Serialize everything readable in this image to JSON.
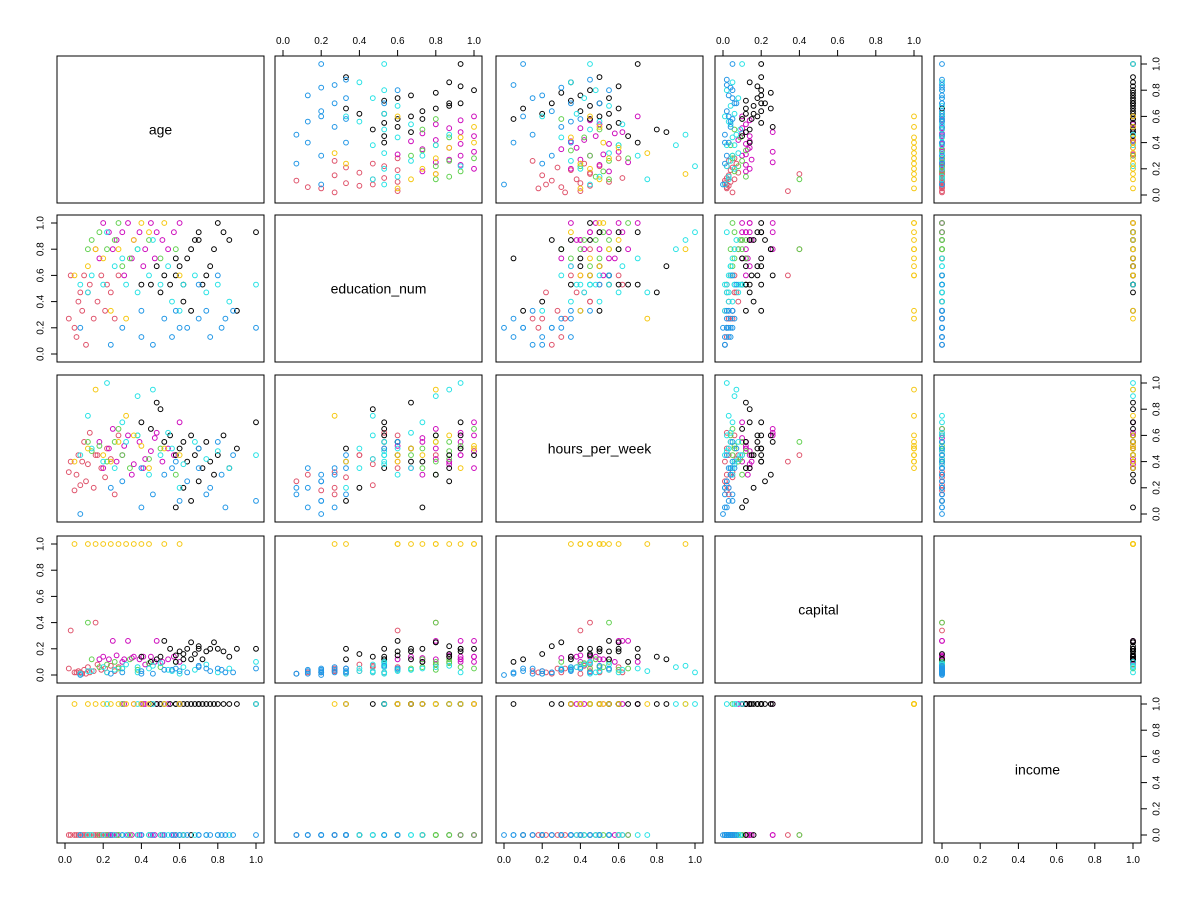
{
  "chart_data": {
    "type": "scatter",
    "subtype": "scatterplot-matrix",
    "variables": [
      "age",
      "education_num",
      "hours_per_week",
      "capital",
      "income"
    ],
    "axis_range": [
      0,
      1
    ],
    "tick_labels": [
      "0.0",
      "0.2",
      "0.4",
      "0.6",
      "0.8",
      "1.0"
    ],
    "grid": false,
    "legend": "none",
    "point_colors": [
      "#000000",
      "#DF536B",
      "#61D04F",
      "#2297E6",
      "#28E2E5",
      "#CD0BBC",
      "#F5C710"
    ],
    "points": [
      [
        0.02,
        0.27,
        0.32,
        0.05,
        0,
        1
      ],
      [
        0.05,
        0.2,
        0.18,
        0.02,
        0,
        1
      ],
      [
        0.07,
        0.4,
        0.45,
        0.03,
        0,
        1
      ],
      [
        0.09,
        0.33,
        0.4,
        0.01,
        0,
        1
      ],
      [
        0.1,
        0.6,
        0.55,
        0.04,
        0,
        1
      ],
      [
        0.12,
        0.47,
        0.38,
        0.06,
        0,
        1
      ],
      [
        0.13,
        0.53,
        0.62,
        0.02,
        0,
        1
      ],
      [
        0.15,
        0.27,
        0.2,
        0.03,
        0,
        1
      ],
      [
        0.17,
        0.4,
        0.45,
        0.08,
        0,
        1
      ],
      [
        0.19,
        0.6,
        0.35,
        0.04,
        0,
        1
      ],
      [
        0.21,
        0.33,
        0.28,
        0.05,
        0,
        1
      ],
      [
        0.22,
        0.53,
        0.5,
        0.02,
        0,
        1
      ],
      [
        0.24,
        0.47,
        0.42,
        0.07,
        0,
        1
      ],
      [
        0.26,
        0.27,
        0.15,
        0.03,
        0,
        1
      ],
      [
        0.28,
        0.6,
        0.6,
        0.06,
        0,
        1
      ],
      [
        0.06,
        0.13,
        0.3,
        0.02,
        0,
        1
      ],
      [
        0.11,
        0.07,
        0.25,
        0.01,
        0,
        1
      ],
      [
        0.03,
        0.6,
        0.4,
        0.34,
        0,
        1
      ],
      [
        0.16,
        0.8,
        0.45,
        0.4,
        0,
        1
      ],
      [
        0.08,
        0.47,
        0.22,
        0.02,
        0,
        1
      ],
      [
        0.2,
        1.0,
        0.35,
        0.14,
        0,
        5
      ],
      [
        0.23,
        0.93,
        0.5,
        0.12,
        0,
        5
      ],
      [
        0.27,
        0.87,
        0.4,
        0.15,
        0,
        5
      ],
      [
        0.3,
        0.93,
        0.45,
        0.1,
        1,
        5
      ],
      [
        0.33,
        1.0,
        0.6,
        0.26,
        0,
        5
      ],
      [
        0.36,
        0.87,
        0.38,
        0.14,
        1,
        5
      ],
      [
        0.39,
        0.93,
        0.55,
        0.12,
        0,
        5
      ],
      [
        0.42,
        0.8,
        0.42,
        0.08,
        1,
        5
      ],
      [
        0.45,
        1.0,
        0.48,
        0.14,
        0,
        5
      ],
      [
        0.48,
        0.93,
        0.62,
        0.26,
        1,
        5
      ],
      [
        0.51,
        0.87,
        0.4,
        0.1,
        0,
        5
      ],
      [
        0.54,
        0.8,
        0.5,
        0.12,
        1,
        5
      ],
      [
        0.57,
        0.93,
        0.45,
        0.14,
        0,
        5
      ],
      [
        0.6,
        1.0,
        0.7,
        0.1,
        1,
        5
      ],
      [
        0.35,
        0.73,
        0.3,
        0.13,
        0,
        5
      ],
      [
        0.25,
        0.8,
        0.65,
        0.26,
        0,
        5
      ],
      [
        0.18,
        0.73,
        0.55,
        0.12,
        0,
        5
      ],
      [
        0.41,
        0.67,
        0.35,
        0.14,
        1,
        5
      ],
      [
        0.47,
        0.73,
        0.58,
        0.1,
        0,
        5
      ],
      [
        0.31,
        0.6,
        0.52,
        0.12,
        1,
        5
      ],
      [
        0.14,
        0.87,
        0.48,
        0.12,
        0,
        2
      ],
      [
        0.18,
        0.93,
        0.52,
        0.06,
        0,
        2
      ],
      [
        0.22,
        0.8,
        0.4,
        0.08,
        0,
        2
      ],
      [
        0.26,
        0.87,
        0.55,
        0.1,
        0,
        2
      ],
      [
        0.3,
        0.67,
        0.45,
        0.05,
        1,
        2
      ],
      [
        0.34,
        0.73,
        0.35,
        0.12,
        0,
        2
      ],
      [
        0.38,
        0.8,
        0.6,
        0.04,
        0,
        2
      ],
      [
        0.44,
        0.87,
        0.42,
        0.09,
        0,
        2
      ],
      [
        0.5,
        0.73,
        0.5,
        0.06,
        0,
        2
      ],
      [
        0.58,
        0.8,
        0.3,
        0.1,
        0,
        2
      ],
      [
        0.12,
        0.8,
        0.55,
        0.4,
        0,
        2
      ],
      [
        0.28,
        1.0,
        0.65,
        0.05,
        0,
        2
      ],
      [
        0.55,
        0.53,
        0.6,
        0.2,
        1,
        0
      ],
      [
        0.58,
        0.6,
        0.45,
        0.15,
        1,
        0
      ],
      [
        0.6,
        0.67,
        0.5,
        0.18,
        1,
        0
      ],
      [
        0.62,
        0.53,
        0.55,
        0.12,
        1,
        0
      ],
      [
        0.64,
        0.73,
        0.4,
        0.2,
        1,
        0
      ],
      [
        0.66,
        0.8,
        0.6,
        0.25,
        1,
        0
      ],
      [
        0.68,
        0.87,
        0.45,
        0.16,
        1,
        0
      ],
      [
        0.7,
        0.93,
        0.5,
        0.2,
        1,
        0
      ],
      [
        0.72,
        0.53,
        0.35,
        0.12,
        1,
        0
      ],
      [
        0.74,
        0.6,
        0.55,
        0.18,
        1,
        0
      ],
      [
        0.76,
        0.67,
        0.4,
        0.2,
        1,
        0
      ],
      [
        0.78,
        0.8,
        0.3,
        0.25,
        1,
        0
      ],
      [
        0.8,
        1.0,
        0.45,
        0.2,
        1,
        0
      ],
      [
        0.83,
        0.93,
        0.6,
        0.18,
        1,
        0
      ],
      [
        0.86,
        0.87,
        0.35,
        0.14,
        1,
        0
      ],
      [
        0.9,
        0.33,
        0.5,
        0.2,
        1,
        0
      ],
      [
        1.0,
        0.93,
        0.7,
        0.2,
        1,
        0
      ],
      [
        0.5,
        0.47,
        0.8,
        0.14,
        1,
        0
      ],
      [
        0.45,
        0.53,
        0.65,
        0.1,
        1,
        0
      ],
      [
        0.62,
        0.4,
        0.2,
        0.16,
        0,
        0
      ],
      [
        0.66,
        0.33,
        0.1,
        0.12,
        0,
        0
      ],
      [
        0.7,
        0.87,
        0.25,
        0.22,
        1,
        0
      ],
      [
        0.58,
        0.73,
        0.05,
        0.1,
        1,
        0
      ],
      [
        0.52,
        0.6,
        0.55,
        0.26,
        1,
        0
      ],
      [
        0.4,
        0.53,
        0.7,
        0.14,
        1,
        0
      ],
      [
        0.48,
        0.67,
        0.85,
        0.12,
        1,
        0
      ],
      [
        0.08,
        0.53,
        0.45,
        0.01,
        0,
        4
      ],
      [
        0.14,
        0.6,
        0.5,
        0.03,
        0,
        4
      ],
      [
        0.2,
        0.53,
        0.4,
        0.06,
        0,
        4
      ],
      [
        0.26,
        0.67,
        0.35,
        0.04,
        0,
        4
      ],
      [
        0.32,
        0.53,
        0.55,
        0.08,
        0,
        4
      ],
      [
        0.38,
        0.47,
        0.6,
        0.02,
        0,
        4
      ],
      [
        0.44,
        0.6,
        0.3,
        0.05,
        0,
        4
      ],
      [
        0.5,
        0.53,
        0.45,
        0.09,
        0,
        4
      ],
      [
        0.56,
        0.4,
        0.5,
        0.03,
        0,
        4
      ],
      [
        0.62,
        0.53,
        0.38,
        0.06,
        0,
        4
      ],
      [
        0.68,
        0.6,
        0.55,
        0.04,
        0,
        4
      ],
      [
        0.74,
        0.47,
        0.42,
        0.08,
        0,
        4
      ],
      [
        0.8,
        0.53,
        0.48,
        0.02,
        0,
        4
      ],
      [
        0.86,
        0.4,
        0.35,
        0.05,
        0,
        4
      ],
      [
        0.22,
        0.93,
        1.0,
        0.02,
        1,
        4
      ],
      [
        0.38,
        0.8,
        0.9,
        0.06,
        1,
        4
      ],
      [
        0.3,
        0.73,
        0.7,
        0.05,
        0,
        4
      ],
      [
        0.46,
        0.87,
        0.95,
        0.07,
        1,
        4
      ],
      [
        0.6,
        0.33,
        0.2,
        0.01,
        0,
        4
      ],
      [
        0.12,
        0.47,
        0.75,
        0.03,
        0,
        4
      ],
      [
        0.54,
        0.67,
        0.62,
        0.04,
        0,
        4
      ],
      [
        1.0,
        0.53,
        0.45,
        0.1,
        1,
        4
      ],
      [
        0.3,
        0.2,
        0.25,
        0.02,
        0,
        3
      ],
      [
        0.4,
        0.33,
        0.35,
        0.03,
        0,
        3
      ],
      [
        0.46,
        0.07,
        0.15,
        0.01,
        0,
        3
      ],
      [
        0.52,
        0.27,
        0.3,
        0.04,
        0,
        3
      ],
      [
        0.58,
        0.33,
        0.4,
        0.05,
        0,
        3
      ],
      [
        0.64,
        0.2,
        0.25,
        0.02,
        0,
        3
      ],
      [
        0.7,
        0.27,
        0.35,
        0.06,
        0,
        3
      ],
      [
        0.76,
        0.13,
        0.2,
        0.03,
        0,
        3
      ],
      [
        0.82,
        0.2,
        0.3,
        0.04,
        0,
        3
      ],
      [
        0.88,
        0.33,
        0.45,
        0.02,
        0,
        3
      ],
      [
        0.4,
        0.13,
        0.05,
        0.01,
        0,
        3
      ],
      [
        0.6,
        0.2,
        0.1,
        0.03,
        0,
        3
      ],
      [
        0.74,
        0.33,
        0.15,
        0.05,
        0,
        3
      ],
      [
        0.84,
        0.27,
        0.05,
        0.02,
        0,
        3
      ],
      [
        0.7,
        0.53,
        0.5,
        0.07,
        0,
        3
      ],
      [
        0.8,
        0.6,
        0.55,
        0.05,
        0,
        3
      ],
      [
        0.24,
        0.07,
        0.2,
        0.01,
        0,
        3
      ],
      [
        0.56,
        0.13,
        0.35,
        0.04,
        0,
        3
      ],
      [
        0.08,
        0.2,
        0.0,
        0.0,
        0,
        3
      ],
      [
        1.0,
        0.2,
        0.1,
        0.05,
        0,
        3
      ],
      [
        0.05,
        0.6,
        0.4,
        1.0,
        1,
        6
      ],
      [
        0.12,
        0.67,
        0.5,
        1.0,
        1,
        6
      ],
      [
        0.2,
        0.73,
        0.45,
        1.0,
        1,
        6
      ],
      [
        0.28,
        0.8,
        0.55,
        1.0,
        1,
        6
      ],
      [
        0.36,
        0.87,
        0.6,
        1.0,
        1,
        6
      ],
      [
        0.44,
        0.93,
        0.35,
        1.0,
        1,
        6
      ],
      [
        0.52,
        1.0,
        0.5,
        1.0,
        1,
        6
      ],
      [
        0.6,
        0.6,
        0.45,
        1.0,
        1,
        6
      ],
      [
        0.32,
        0.27,
        0.75,
        1.0,
        1,
        6
      ],
      [
        0.24,
        0.33,
        0.4,
        1.0,
        1,
        6
      ],
      [
        0.16,
        0.8,
        0.95,
        1.0,
        1,
        6
      ],
      [
        0.4,
        1.0,
        0.52,
        1.0,
        1,
        6
      ]
    ]
  }
}
